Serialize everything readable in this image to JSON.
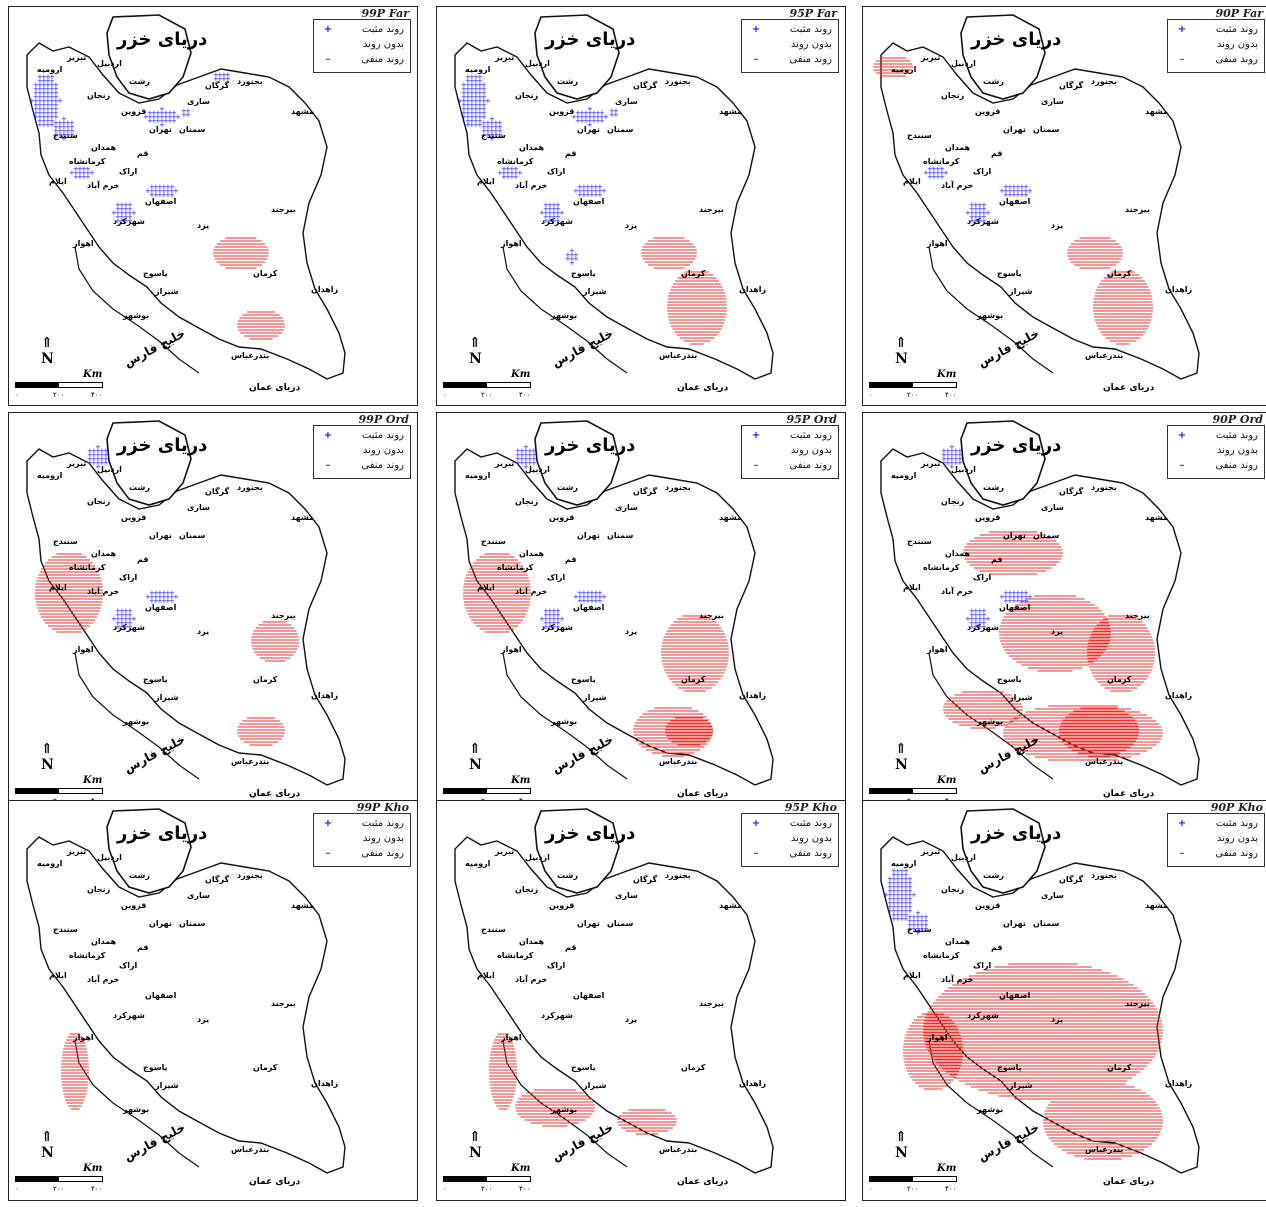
{
  "legend": {
    "positive": "روند مثبت",
    "none": "بدون روند",
    "negative": "روند منفی"
  },
  "labels": {
    "sea_caspian": "دریای خزر",
    "gulf": "خلیج فارس",
    "oman": "دریای عمان",
    "km": "Km",
    "scale_ticks": [
      "۰",
      "۲۰۰",
      "۴۰۰"
    ]
  },
  "colors": {
    "positive": "#1a1aff",
    "negative": "#e8322e",
    "border": "#111111"
  },
  "cities": [
    "تبریز",
    "اردبیل",
    "ارومیه",
    "زنجان",
    "قزوین",
    "رشت",
    "ساری",
    "گرگان",
    "بجنورد",
    "مشهد",
    "تهران",
    "سمنان",
    "سنندج",
    "همدان",
    "کرمانشاه",
    "قم",
    "اراک",
    "ایلام",
    "خرم آباد",
    "اصفهان",
    "شهرکرد",
    "یزد",
    "بیرجند",
    "اهواز",
    "یاسوج",
    "کرمان",
    "زاهدان",
    "شیراز",
    "بوشهر",
    "بندرعباس"
  ],
  "panels": [
    {
      "title": "99P Far",
      "positive": [
        "ne",
        "nw",
        "tehran",
        "isfahan",
        "west"
      ],
      "negative": [
        "kerman",
        "south"
      ],
      "positive_sym": "+"
    },
    {
      "title": "95P Far",
      "positive": [
        "nw",
        "tehran",
        "isfahan",
        "yasuj",
        "west"
      ],
      "negative": [
        "kerman",
        "southeast"
      ],
      "positive_sym": "+"
    },
    {
      "title": "90P Far",
      "positive": [
        "west",
        "isfahan"
      ],
      "negative": [
        "kerman",
        "southeast",
        "nw_band"
      ],
      "positive_sym": "+"
    },
    {
      "title": "99P Ord",
      "positive": [
        "isfahan",
        "ardabil"
      ],
      "negative": [
        "birjand",
        "south",
        "west_band"
      ],
      "positive_sym": "+"
    },
    {
      "title": "95P Ord",
      "positive": [
        "isfahan",
        "ardabil"
      ],
      "negative": [
        "east",
        "south",
        "west_band"
      ],
      "positive_sym": "+"
    },
    {
      "title": "90P Ord",
      "positive": [
        "isfahan",
        "ardabil"
      ],
      "negative": [
        "center",
        "south_wide",
        "east"
      ],
      "positive_sym": "+"
    },
    {
      "title": "99P Kho",
      "positive": [],
      "negative": [
        "khuzestan"
      ],
      "positive_sym": "+"
    },
    {
      "title": "95P Kho",
      "positive": [],
      "negative": [
        "khuzestan",
        "bushehr"
      ],
      "positive_sym": "+"
    },
    {
      "title": "90P Kho",
      "positive": [
        "nw"
      ],
      "negative": [
        "wide"
      ],
      "positive_sym": "+"
    }
  ]
}
